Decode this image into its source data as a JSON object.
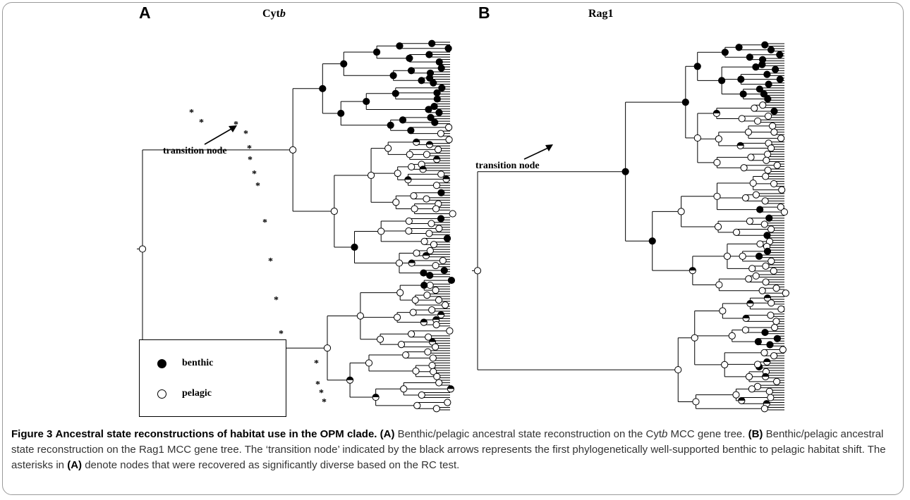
{
  "figure": {
    "panel_a": {
      "letter": "A",
      "title_main": "Cyt",
      "title_ital": "b"
    },
    "panel_b": {
      "letter": "B",
      "title": "Rag1"
    },
    "transition_label": "transition node",
    "legend": {
      "benthic": "benthic",
      "pelagic": "pelagic"
    },
    "colors": {
      "benthic": "#000000",
      "pelagic": "#ffffff",
      "line": "#000000"
    }
  },
  "caption": {
    "label": "Figure 3",
    "title": "Ancestral state reconstructions of habitat use in the OPM clade.",
    "a_tag": "(A)",
    "a_text_1": "Benthic/pelagic ancestral state reconstruction on the",
    "a_gene_1": "Cyt",
    "a_gene_2": "b",
    "a_text_2": "MCC gene tree.",
    "b_tag": "(B)",
    "b_text": "Benthic/pelagic ancestral state reconstruction on the Rag1 MCC gene tree. The ‘transition node’ indicated by the black arrows represents the first phylogenetically well-supported benthic to pelagic habitat shift. The asterisks in",
    "a_tag_2": "(A)",
    "end_text": "denote nodes that were recovered as significantly diverse based on the RC test."
  }
}
